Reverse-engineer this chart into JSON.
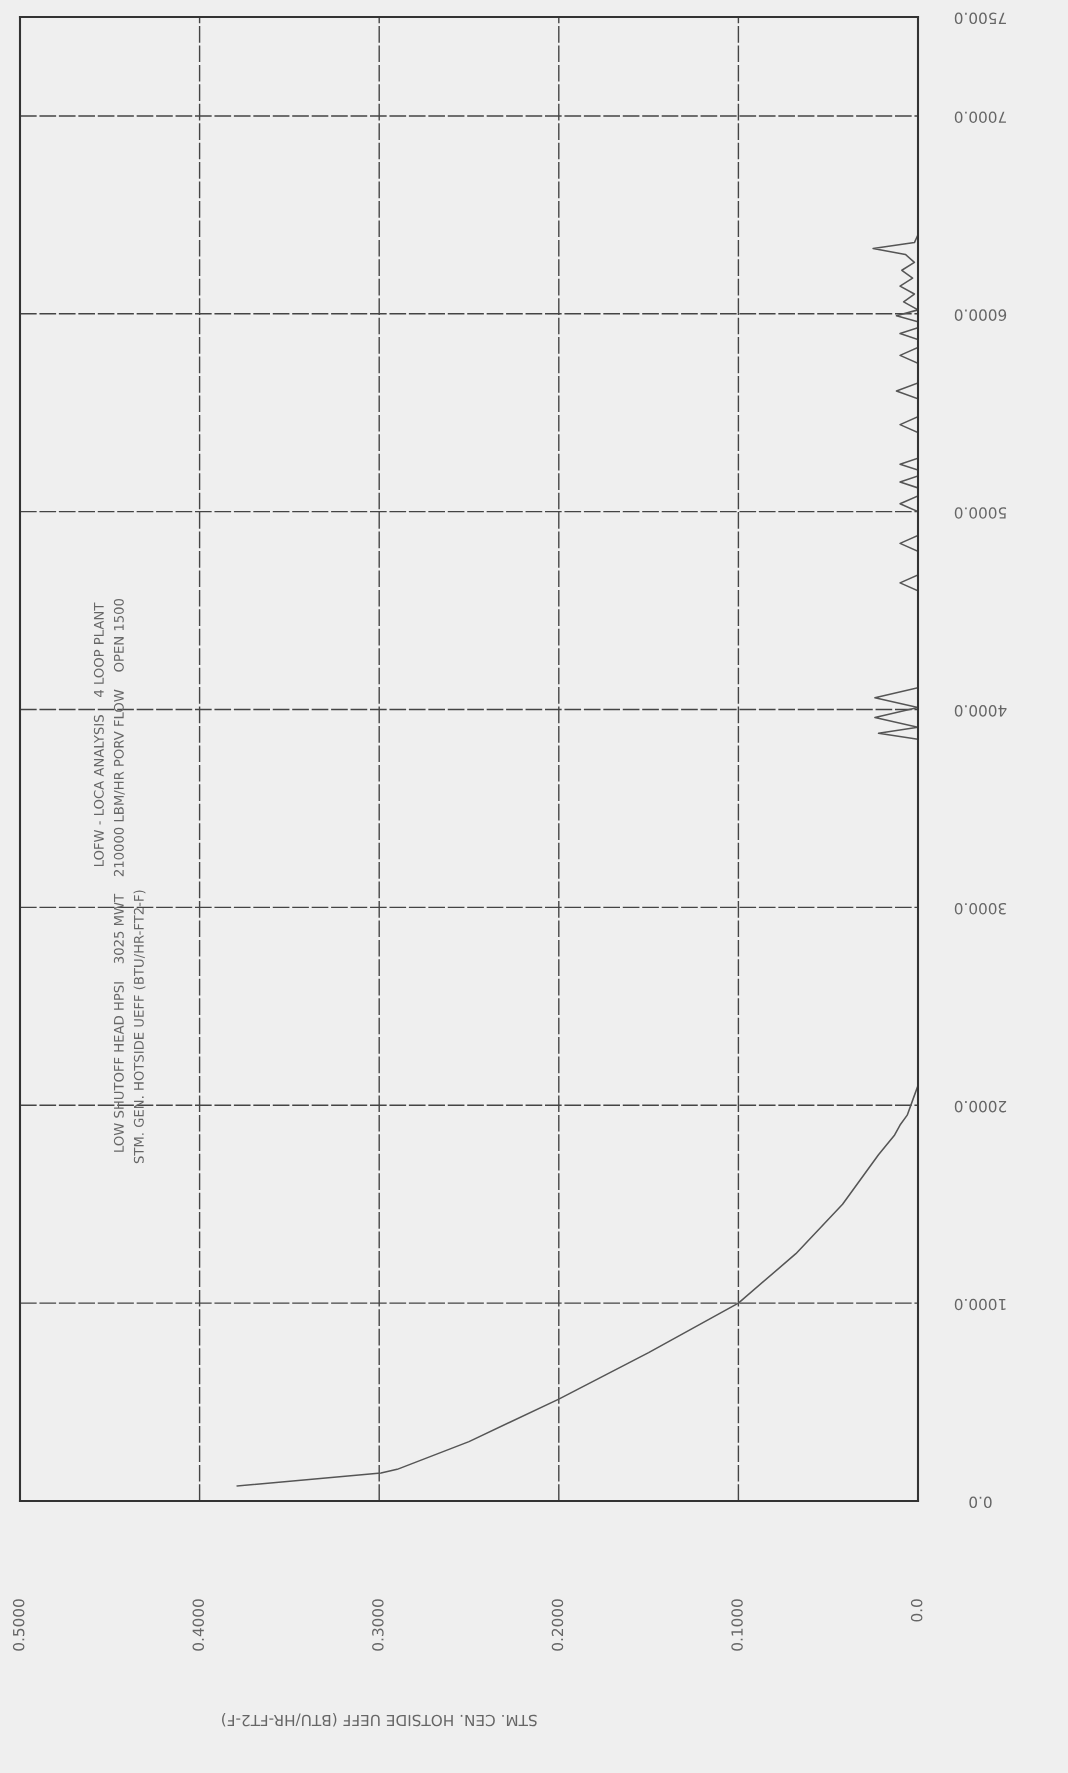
{
  "chart_data": {
    "type": "line",
    "title": "LOFW - LOCA ANALYSIS    4 LOOP PLANT",
    "subtitle": "LOW SHUTOFF HEAD HPSI    3025 MWT    210000 LBM/HR PORV FLOW    OPEN 1500",
    "annotations": [
      "STM. GEN. HOTSIDE UEFF (BTU/HR-FT2-F)"
    ],
    "xlabel": "STM. CEN. HOTSIDE UEFF (BTU/HR-FT2-F)",
    "x": [
      0.379,
      0.299,
      0.29,
      0.25,
      0.2,
      0.15,
      0.1,
      0.068,
      0.042,
      0.022,
      0.013,
      0.01,
      0.006,
      0.002,
      0.0,
      0.0,
      0.022,
      0.0,
      0.024,
      0.0,
      0.024,
      0.0,
      0.0,
      0.0,
      0.01,
      0.0,
      0.0,
      0.01,
      0.0,
      0.0,
      0.01,
      0.0,
      0.0,
      0.01,
      0.0,
      0.0,
      0.01,
      0.0,
      0.0,
      0.01,
      0.0,
      0.0,
      0.012,
      0.0,
      0.0,
      0.01,
      0.0,
      0.0,
      0.01,
      0.0,
      0.0,
      0.012,
      0.0,
      0.008,
      0.002,
      0.01,
      0.003,
      0.009,
      0.002,
      0.007,
      0.025,
      0.002,
      0.0
    ],
    "values": [
      76,
      141,
      160,
      300,
      515,
      750,
      1000,
      1250,
      1500,
      1750,
      1850,
      1900,
      1950,
      2050,
      2100,
      3850,
      3880,
      3910,
      3960,
      4010,
      4060,
      4110,
      4150,
      4600,
      4640,
      4680,
      4800,
      4840,
      4880,
      5000,
      5040,
      5080,
      5120,
      5150,
      5180,
      5210,
      5240,
      5270,
      5400,
      5440,
      5480,
      5570,
      5610,
      5650,
      5750,
      5790,
      5830,
      5870,
      5900,
      5930,
      5960,
      5990,
      6020,
      6060,
      6100,
      6140,
      6180,
      6220,
      6260,
      6300,
      6330,
      6360,
      6400
    ],
    "color": "#555555",
    "xlim": [
      0.5,
      0
    ],
    "xticks": [
      {
        "value": 0.5,
        "label": "0.5000"
      },
      {
        "value": 0.4,
        "label": "0.4000"
      },
      {
        "value": 0.3,
        "label": "0.3000"
      },
      {
        "value": 0.2,
        "label": "0.2000"
      },
      {
        "value": 0.1,
        "label": "0.1000"
      },
      {
        "value": 0,
        "label": "0.0"
      }
    ],
    "ylim": [
      0,
      7500
    ],
    "yticks": [
      {
        "value": 0,
        "label": "0.0"
      },
      {
        "value": 1000,
        "label": "1000.0"
      },
      {
        "value": 2000,
        "label": "2000.0"
      },
      {
        "value": 3000,
        "label": "3000.0"
      },
      {
        "value": 4000,
        "label": "4000.0"
      },
      {
        "value": 5000,
        "label": "5000.0"
      },
      {
        "value": 6000,
        "label": "6000.0"
      },
      {
        "value": 7000,
        "label": "7000.0"
      },
      {
        "value": 7500,
        "label": "7500.0"
      }
    ],
    "grid": true,
    "marker": "none",
    "line_style": "solid"
  }
}
